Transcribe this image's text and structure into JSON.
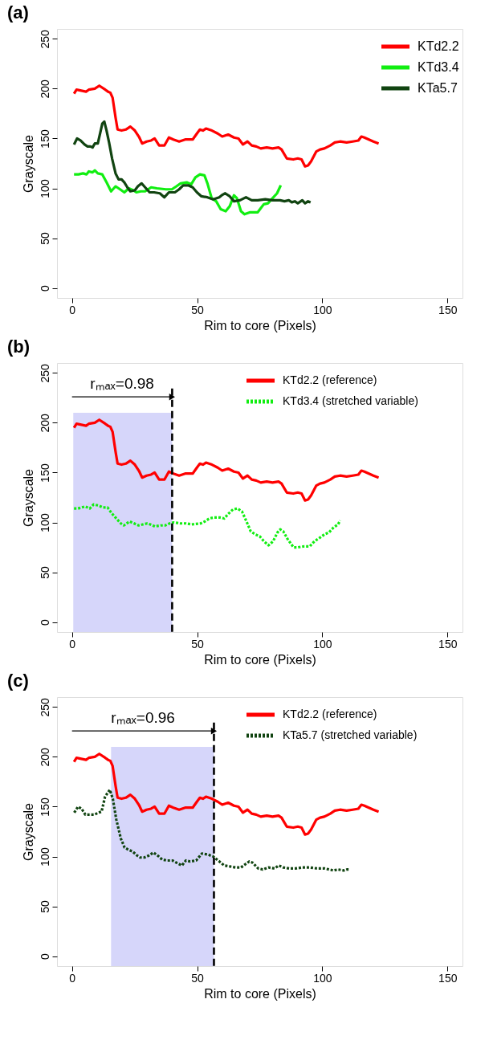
{
  "chart_data": [
    {
      "type": "line",
      "title": "(a)",
      "xlabel": "Rim to core (Pixels)",
      "ylabel": "Grayscale",
      "xlim": [
        -6,
        156
      ],
      "ylim": [
        -10,
        260
      ],
      "xticks": [
        0,
        50,
        100,
        150
      ],
      "yticks": [
        0,
        50,
        100,
        150,
        200,
        250
      ],
      "grid": false,
      "legend": "top right",
      "series": [
        {
          "name": "KTd2.2",
          "color": "#ff0000",
          "line_style": "solid",
          "x": [
            0.8,
            1.8,
            5.6,
            6.7,
            9.1,
            10.9,
            13.3,
            14.4,
            15.3,
            16.2,
            17.4,
            18.2,
            19.8,
            21.5,
            23.3,
            25.1,
            26.9,
            28.0,
            29.8,
            31.6,
            33.0,
            34.8,
            36.9,
            38.7,
            40.5,
            42.8,
            45.2,
            48.2,
            49.9,
            51.1,
            52.3,
            53.5,
            55.9,
            58.2,
            60.0,
            62.4,
            64.7,
            66.5,
            68.3,
            70.1,
            71.8,
            73.6,
            75.4,
            77.8,
            80.1,
            82.5,
            83.7,
            85.8,
            88.4,
            90.2,
            91.7,
            93.1,
            94.3,
            95.5,
            97.6,
            99.1,
            100.8,
            103.2,
            105.0,
            107.1,
            109.7,
            112.1,
            114.4,
            115.6,
            116.8,
            118.6,
            120.4,
            122.5
          ],
          "values": [
            195,
            199,
            197,
            199,
            200,
            203,
            199,
            197,
            196,
            191,
            171,
            159,
            158,
            159,
            162,
            158,
            151,
            145,
            147,
            148,
            150,
            143,
            143,
            151,
            149,
            147,
            149,
            149,
            155,
            159,
            158,
            160,
            158,
            155,
            152,
            154,
            151,
            150,
            144,
            147,
            143,
            142,
            140,
            141,
            140,
            141,
            139,
            130,
            129,
            130,
            129,
            122,
            123,
            127,
            137,
            139,
            140,
            143,
            146,
            147,
            146,
            147,
            148,
            152,
            151,
            149,
            147,
            145
          ]
        },
        {
          "name": "KTd3.4",
          "color": "#11ee11",
          "line_style": "solid",
          "x": [
            0.8,
            2.6,
            4.4,
            5.8,
            6.7,
            8.2,
            9.1,
            10.3,
            12.1,
            13.8,
            15.6,
            17.4,
            19.2,
            20.9,
            22.7,
            24.5,
            25.7,
            27.5,
            29.2,
            31.6,
            33.9,
            37.5,
            39.9,
            41.7,
            43.4,
            45.8,
            47.6,
            49.3,
            51.1,
            52.9,
            54.1,
            55.8,
            57.6,
            59.4,
            61.4,
            63.0,
            64.7,
            65.9,
            67.5,
            68.9,
            71.2,
            74.2,
            76.6,
            78.3,
            80.1,
            81.9,
            83.4
          ],
          "values": [
            114,
            114,
            115,
            114,
            117,
            116,
            118,
            115,
            114,
            106,
            97,
            102,
            99,
            96,
            100,
            98,
            96,
            97,
            97,
            101,
            100,
            99,
            99,
            102,
            105,
            106,
            104,
            111,
            114,
            113,
            105,
            90,
            87,
            79,
            77,
            82,
            93,
            90,
            77,
            74,
            76,
            76,
            84,
            85,
            90,
            95,
            103
          ]
        },
        {
          "name": "KTa5.7",
          "color": "#114411",
          "line_style": "solid",
          "x": [
            0.8,
            2.0,
            3.4,
            5.0,
            6.2,
            7.3,
            8.2,
            9.1,
            10.3,
            11.2,
            12.1,
            12.9,
            13.8,
            14.8,
            16.0,
            17.4,
            18.6,
            19.8,
            20.9,
            22.1,
            23.3,
            25.1,
            26.3,
            27.8,
            29.2,
            31.0,
            32.8,
            35.1,
            36.9,
            38.7,
            41.1,
            42.8,
            44.4,
            46.4,
            48.2,
            49.9,
            51.7,
            54.1,
            56.4,
            58.8,
            59.8,
            61.2,
            63.0,
            64.7,
            67.1,
            69.5,
            71.8,
            74.2,
            77.2,
            80.1,
            83.1,
            84.9,
            86.6,
            87.8,
            89.0,
            90.2,
            92.0,
            93.1,
            94.3,
            95.3
          ],
          "values": [
            144,
            150,
            148,
            144,
            142,
            142,
            141,
            145,
            145,
            155,
            165,
            167,
            158,
            146,
            130,
            115,
            109,
            109,
            106,
            101,
            97,
            98,
            102,
            105,
            101,
            96,
            96,
            95,
            91,
            96,
            96,
            99,
            103,
            103,
            101,
            96,
            92,
            91,
            89,
            91,
            93,
            95,
            92,
            87,
            88,
            91,
            88,
            88,
            89,
            88,
            88,
            87,
            88,
            86,
            87,
            85,
            88,
            85,
            87,
            86
          ]
        }
      ]
    },
    {
      "type": "line",
      "title": "(b)",
      "xlabel": "Rim to core (Pixels)",
      "ylabel": "Grayscale",
      "xlim": [
        -6,
        156
      ],
      "ylim": [
        -10,
        260
      ],
      "xticks": [
        0,
        50,
        100,
        150
      ],
      "yticks": [
        0,
        50,
        100,
        150,
        200,
        250
      ],
      "grid": false,
      "legend": "top right",
      "bands": [
        {
          "axis": "x",
          "from": 0.5,
          "to": 40,
          "color": "#d6d6fa"
        }
      ],
      "ref_lines": [
        {
          "axis": "x",
          "value": 40,
          "color": "#000000",
          "line_style": "dashed"
        }
      ],
      "annotations": [
        "rₘₐₓ=0.98"
      ],
      "series": [
        {
          "name": "KTd2.2 (reference)",
          "color": "#ff0000",
          "line_style": "solid",
          "x": [
            0.8,
            1.8,
            5.6,
            6.7,
            9.1,
            10.9,
            13.3,
            14.4,
            15.3,
            16.2,
            17.4,
            18.2,
            19.8,
            21.5,
            23.3,
            25.1,
            26.9,
            28.0,
            29.8,
            31.6,
            33.0,
            34.8,
            36.9,
            38.7,
            40.5,
            42.8,
            45.2,
            48.2,
            49.9,
            51.1,
            52.3,
            53.5,
            55.9,
            58.2,
            60.0,
            62.4,
            64.7,
            66.5,
            68.3,
            70.1,
            71.8,
            73.6,
            75.4,
            77.8,
            80.1,
            82.5,
            83.7,
            85.8,
            88.4,
            90.2,
            91.7,
            93.1,
            94.3,
            95.5,
            97.6,
            99.1,
            100.8,
            103.2,
            105.0,
            107.1,
            109.7,
            112.1,
            114.4,
            115.6,
            116.8,
            118.6,
            120.4,
            122.5
          ],
          "values": [
            195,
            199,
            197,
            199,
            200,
            203,
            199,
            197,
            196,
            191,
            171,
            159,
            158,
            159,
            162,
            158,
            151,
            145,
            147,
            148,
            150,
            143,
            143,
            151,
            149,
            147,
            149,
            149,
            155,
            159,
            158,
            160,
            158,
            155,
            152,
            154,
            151,
            150,
            144,
            147,
            143,
            142,
            140,
            141,
            140,
            141,
            139,
            130,
            129,
            130,
            129,
            122,
            123,
            127,
            137,
            139,
            140,
            143,
            146,
            147,
            146,
            147,
            148,
            152,
            151,
            149,
            147,
            145
          ]
        },
        {
          "name": "KTd3.4 (stretched variable)",
          "color": "#11ee11",
          "line_style": "dotted",
          "x": [
            0.8,
            2.4,
            5.3,
            7.1,
            8.6,
            10.6,
            12.4,
            14.2,
            15.9,
            17.7,
            19.5,
            20.7,
            23.0,
            24.8,
            26.6,
            28.3,
            30.1,
            31.3,
            33.1,
            35.4,
            37.2,
            39.0,
            40.7,
            43.1,
            45.5,
            47.8,
            51.4,
            53.1,
            54.9,
            56.7,
            59.0,
            60.8,
            62.6,
            64.3,
            66.1,
            67.9,
            69.7,
            71.4,
            73.2,
            75.0,
            76.7,
            78.5,
            80.3,
            82.1,
            83.2,
            84.4,
            86.2,
            88.5,
            90.3,
            92.7,
            95.0,
            96.8,
            99.2,
            100.9,
            102.7,
            104.5,
            106.3,
            107.1
          ],
          "values": [
            114,
            114,
            116,
            114,
            118,
            117,
            115,
            115,
            109,
            104,
            99,
            97,
            101,
            99,
            97,
            98,
            99,
            98,
            96,
            97,
            97,
            99,
            100,
            99,
            99,
            98,
            99,
            101,
            104,
            105,
            105,
            104,
            109,
            113,
            114,
            111,
            101,
            91,
            88,
            86,
            81,
            77,
            81,
            90,
            93,
            91,
            83,
            75,
            75,
            76,
            76,
            81,
            85,
            88,
            90,
            95,
            98,
            102
          ]
        }
      ]
    },
    {
      "type": "line",
      "title": "(c)",
      "xlabel": "Rim to core (Pixels)",
      "ylabel": "Grayscale",
      "xlim": [
        -6,
        156
      ],
      "ylim": [
        -10,
        260
      ],
      "xticks": [
        0,
        50,
        100,
        150
      ],
      "yticks": [
        0,
        50,
        100,
        150,
        200,
        250
      ],
      "grid": false,
      "legend": "top right",
      "bands": [
        {
          "axis": "x",
          "from": 15.6,
          "to": 56.7,
          "color": "#d6d6fa"
        }
      ],
      "ref_lines": [
        {
          "axis": "x",
          "value": 56.7,
          "color": "#000000",
          "line_style": "dashed"
        }
      ],
      "annotations": [
        "rₘₐₓ=0.96"
      ],
      "series": [
        {
          "name": "KTd2.2 (reference)",
          "color": "#ff0000",
          "line_style": "solid",
          "x": [
            0.8,
            1.8,
            5.6,
            6.7,
            9.1,
            10.9,
            13.3,
            14.4,
            15.3,
            16.2,
            17.4,
            18.2,
            19.8,
            21.5,
            23.3,
            25.1,
            26.9,
            28.0,
            29.8,
            31.6,
            33.0,
            34.8,
            36.9,
            38.7,
            40.5,
            42.8,
            45.2,
            48.2,
            49.9,
            51.1,
            52.3,
            53.5,
            55.9,
            58.2,
            60.0,
            62.4,
            64.7,
            66.5,
            68.3,
            70.1,
            71.8,
            73.6,
            75.4,
            77.8,
            80.1,
            82.5,
            83.7,
            85.8,
            88.4,
            90.2,
            91.7,
            93.1,
            94.3,
            95.5,
            97.6,
            99.1,
            100.8,
            103.2,
            105.0,
            107.1,
            109.7,
            112.1,
            114.4,
            115.6,
            116.8,
            118.6,
            120.4,
            122.5
          ],
          "values": [
            195,
            199,
            197,
            199,
            200,
            203,
            199,
            197,
            196,
            191,
            171,
            159,
            158,
            159,
            162,
            158,
            151,
            145,
            147,
            148,
            150,
            143,
            143,
            151,
            149,
            147,
            149,
            149,
            155,
            159,
            158,
            160,
            158,
            155,
            152,
            154,
            151,
            150,
            144,
            147,
            143,
            142,
            140,
            141,
            140,
            141,
            139,
            130,
            129,
            130,
            129,
            122,
            123,
            127,
            137,
            139,
            140,
            143,
            146,
            147,
            146,
            147,
            148,
            152,
            151,
            149,
            147,
            145
          ]
        },
        {
          "name": "KTa5.7 (stretched variable)",
          "color": "#114411",
          "line_style": "dotted",
          "x": [
            0.9,
            2.4,
            3.8,
            5.3,
            7.1,
            8.9,
            10.6,
            11.8,
            13.2,
            15.1,
            16.3,
            17.7,
            19.5,
            21.0,
            22.4,
            24.2,
            26.0,
            27.2,
            28.9,
            30.7,
            32.5,
            34.2,
            36.0,
            37.8,
            40.1,
            42.3,
            43.9,
            45.5,
            47.2,
            49.6,
            51.9,
            54.3,
            56.4,
            58.4,
            60.8,
            63.1,
            65.5,
            67.5,
            69.1,
            70.8,
            72.0,
            74.4,
            76.2,
            78.5,
            80.9,
            82.6,
            84.4,
            86.8,
            89.1,
            92.1,
            95.0,
            98.0,
            100.9,
            102.7,
            104.5,
            106.3,
            108.6,
            109.8,
            111.0
          ],
          "values": [
            144,
            150,
            148,
            142,
            142,
            142,
            144,
            145,
            160,
            167,
            158,
            137,
            118,
            109,
            107,
            105,
            101,
            99,
            99,
            101,
            104,
            101,
            97,
            96,
            96,
            93,
            91,
            96,
            95,
            96,
            103,
            102,
            100,
            96,
            91,
            90,
            89,
            89,
            92,
            95,
            94,
            88,
            87,
            89,
            88,
            91,
            89,
            88,
            88,
            89,
            89,
            88,
            88,
            87,
            86,
            87,
            86,
            87,
            87
          ]
        }
      ]
    }
  ]
}
